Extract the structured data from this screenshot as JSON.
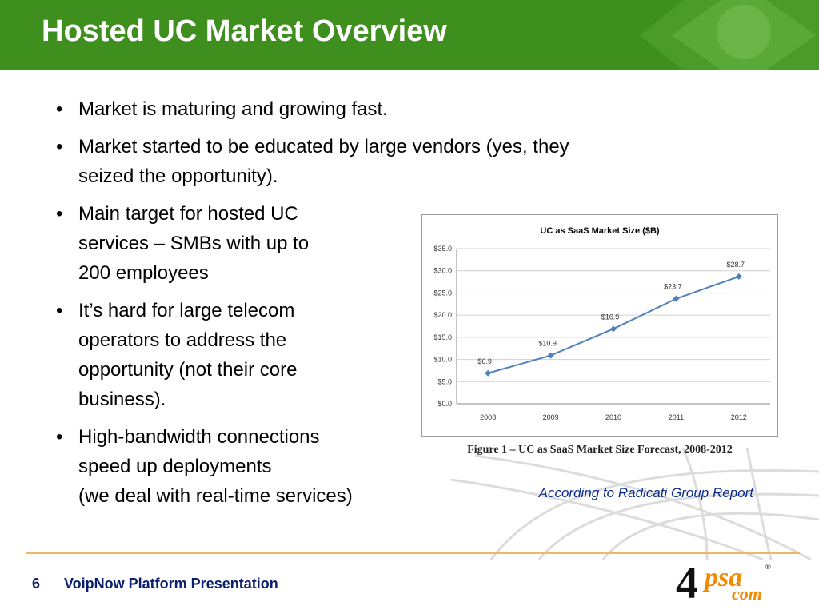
{
  "slide": {
    "title": "Hosted UC Market Overview",
    "bullets": [
      {
        "lines": [
          "Market is maturing and growing fast."
        ]
      },
      {
        "lines": [
          "Market started to be educated by large vendors (yes, they",
          "seized the opportunity)."
        ]
      },
      {
        "lines": [
          "Main target for hosted UC",
          "services – SMBs with up to",
          "200 employees"
        ]
      },
      {
        "lines": [
          "It’s hard for large telecom",
          "operators to address the",
          "opportunity (not their core",
          "business)."
        ]
      },
      {
        "lines": [
          "High-bandwidth connections",
          "speed up deployments",
          "(we deal with real-time services)"
        ]
      }
    ],
    "bullet_glyph": "•",
    "figure_caption": "Figure 1 – UC as SaaS Market Size Forecast, 2008-2012",
    "source_note": "According to Radicati Group Report"
  },
  "footer": {
    "page_number": "6",
    "title": "VoipNow Platform Presentation"
  },
  "logo": {
    "main": "4",
    "psa": "psa",
    "com": "com",
    "registered": "®"
  },
  "colors": {
    "header_green": "#3f8f1f",
    "footer_text": "#0a1e6e",
    "rule": "#f0b46a",
    "series": "#4f81bd"
  },
  "chart_data": {
    "type": "line",
    "title": "UC as SaaS Market Size ($B)",
    "categories": [
      "2008",
      "2009",
      "2010",
      "2011",
      "2012"
    ],
    "values": [
      6.9,
      10.9,
      16.9,
      23.7,
      28.7
    ],
    "data_labels": [
      "$6.9",
      "$10.9",
      "$16.9",
      "$23.7",
      "$28.7"
    ],
    "y_ticks": [
      "$0.0",
      "$5.0",
      "$10.0",
      "$15.0",
      "$20.0",
      "$25.0",
      "$30.0",
      "$35.0"
    ],
    "ylim": [
      0,
      35
    ],
    "grid": true,
    "legend": "none"
  }
}
